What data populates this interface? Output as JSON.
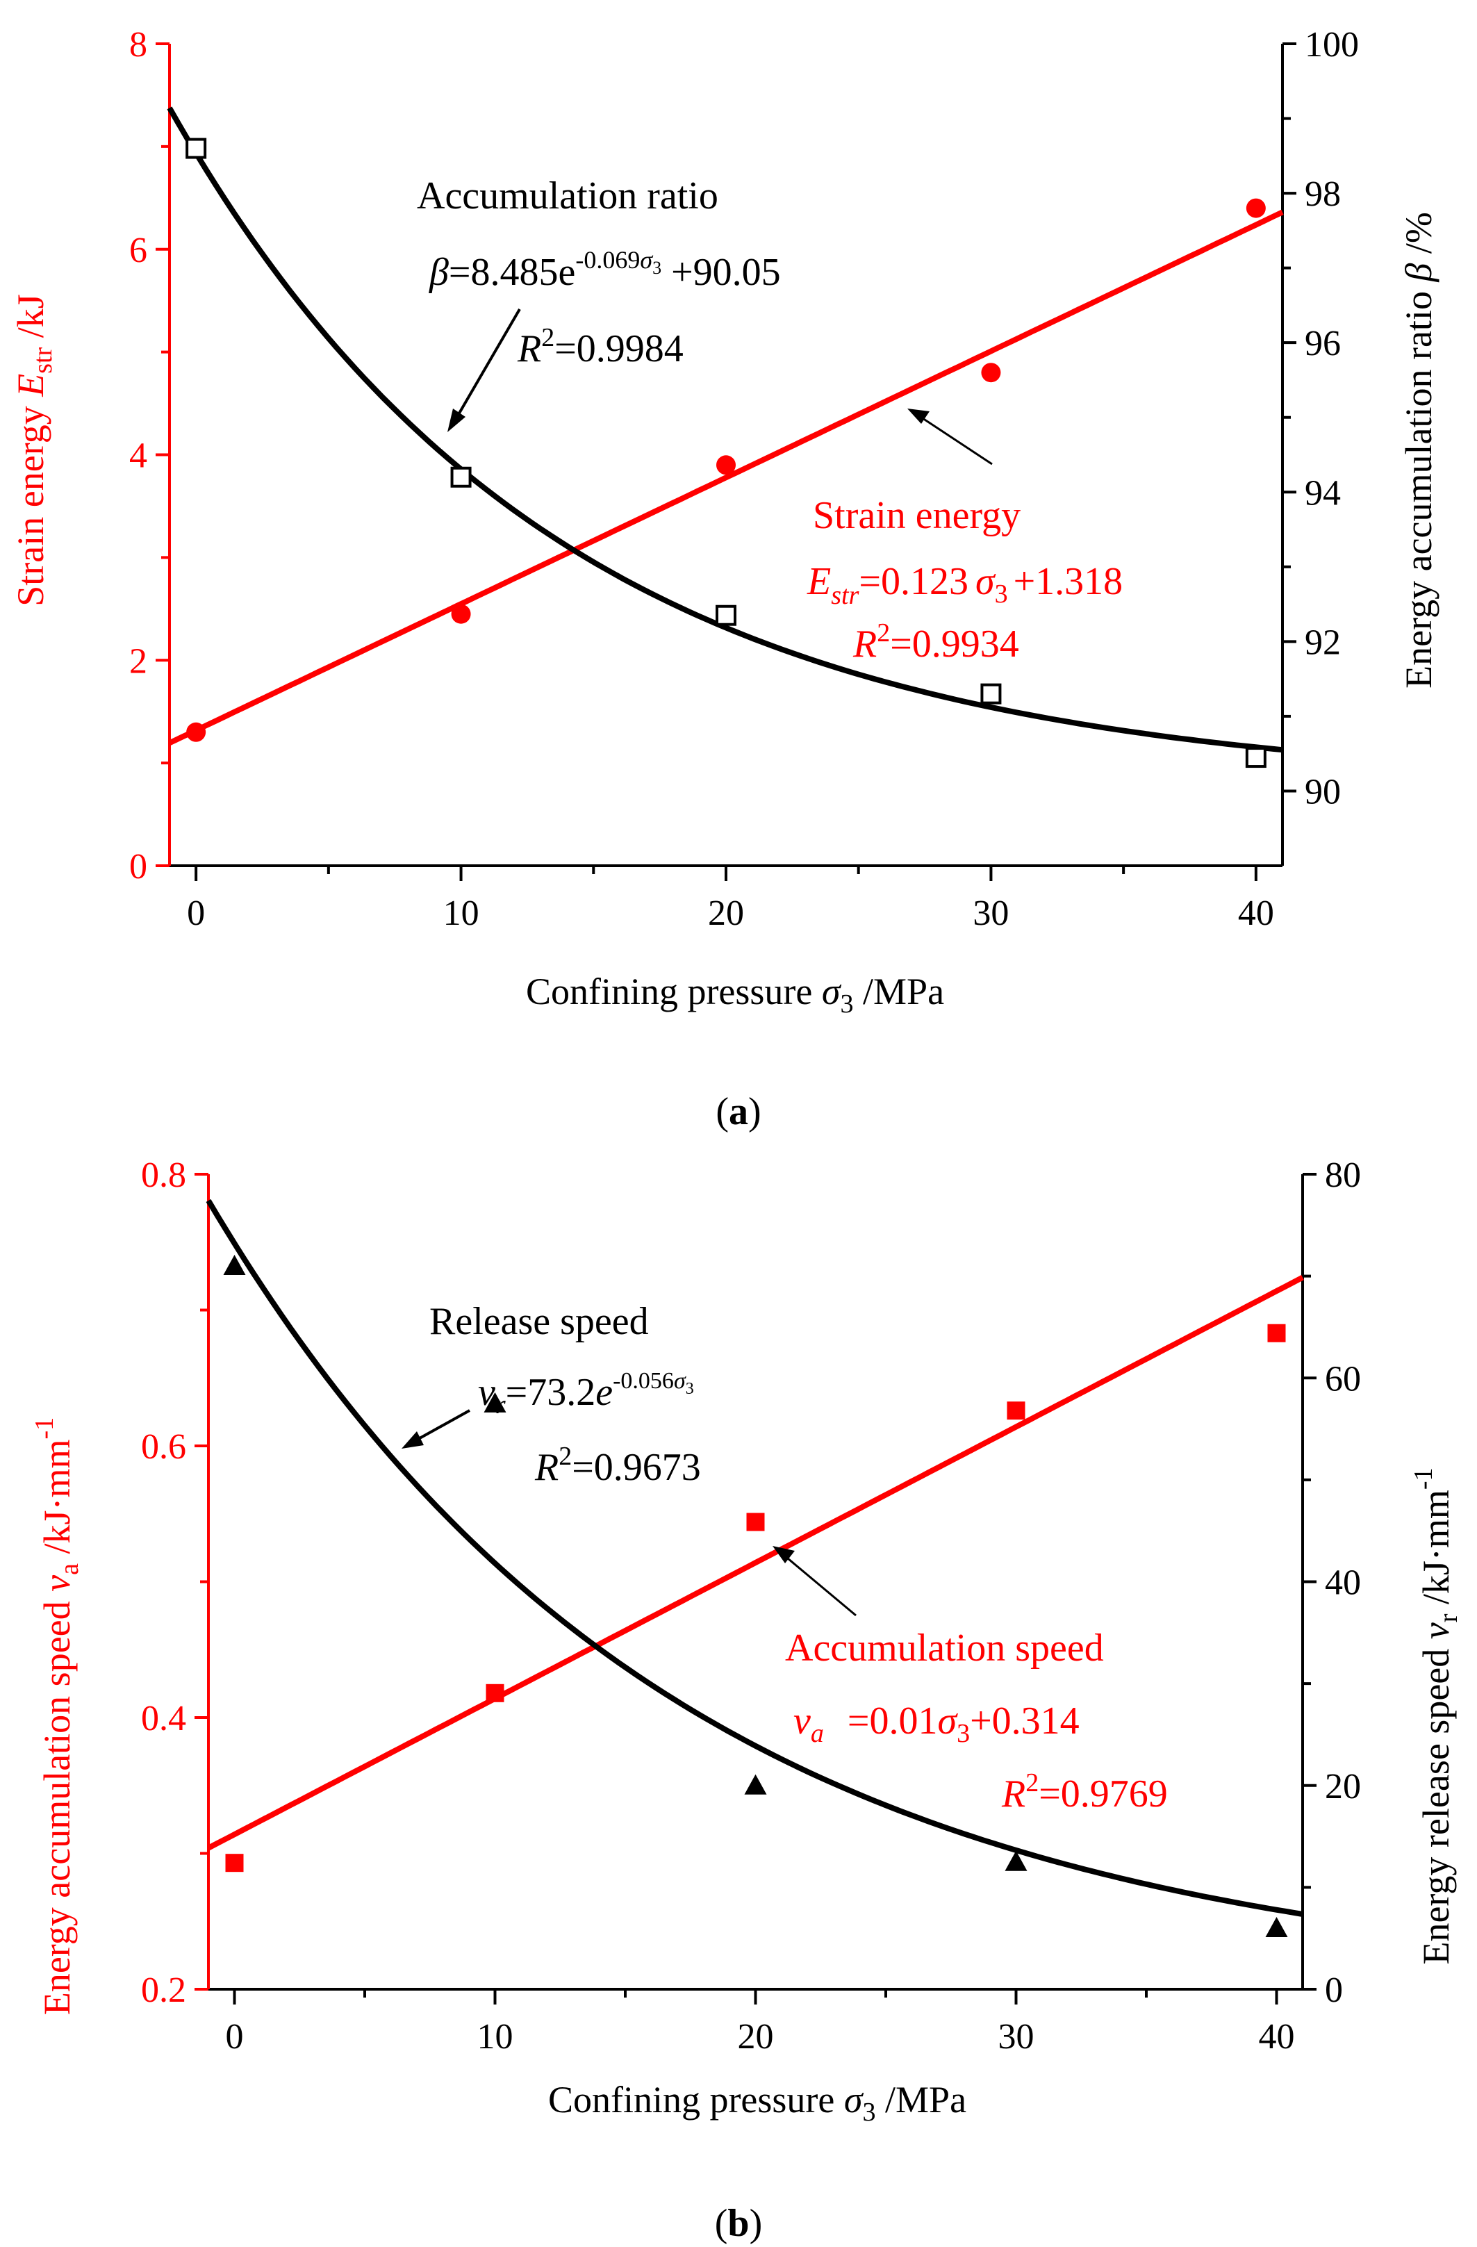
{
  "colors": {
    "red": "#ff0000",
    "black": "#000000"
  },
  "panels": {
    "a": {
      "label_prefix": "(",
      "label": "a",
      "label_suffix": ")"
    },
    "b": {
      "label_prefix": "(",
      "label": "b",
      "label_suffix": ")"
    }
  },
  "chart_data": [
    {
      "id": "a",
      "type": "scatter",
      "x": [
        0,
        10,
        20,
        30,
        40
      ],
      "xlim": [
        -1,
        41
      ],
      "xticks": [
        0,
        10,
        20,
        30,
        40
      ],
      "xlabel_main": "Confining pressure ",
      "xlabel_sym": "σ",
      "xlabel_sub": "3",
      "xlabel_unit": " /MPa",
      "ylim_left": [
        0,
        8
      ],
      "yticks_left": [
        0,
        2,
        4,
        6,
        8
      ],
      "ylabel_left_main": "Strain energy ",
      "ylabel_left_sym": "E",
      "ylabel_left_sub": "str",
      "ylabel_left_unit": " /kJ",
      "ylim_right": [
        89,
        100
      ],
      "yticks_right": [
        90,
        92,
        94,
        96,
        98,
        100
      ],
      "ylabel_right_main": "Energy accumulation ratio ",
      "ylabel_right_sym": "β",
      "ylabel_right_unit": " /%",
      "series": [
        {
          "name": "Strain energy",
          "axis": "left",
          "color": "#ff0000",
          "marker": "circle-filled",
          "values": [
            1.3,
            2.45,
            3.9,
            4.8,
            6.4
          ],
          "fit": {
            "type": "linear",
            "slope": 0.123,
            "intercept": 1.318
          },
          "annotation": {
            "title": "Strain energy",
            "eq_lhs": "E",
            "eq_lhs_sub": "str",
            "eq_rhs_pre": "=0.123",
            "eq_sym": "σ",
            "eq_sym_sub": "3",
            "eq_rhs_post": "+1.318",
            "r2_lhs": "R",
            "r2_sup": "2",
            "r2_val": "=0.9934"
          }
        },
        {
          "name": "Accumulation ratio",
          "axis": "right",
          "color": "#000000",
          "marker": "square-open",
          "values": [
            98.6,
            94.2,
            92.35,
            91.3,
            90.45
          ],
          "fit": {
            "type": "exp",
            "a": 8.485,
            "b": -0.069,
            "c": 90.05
          },
          "annotation": {
            "title": "Accumulation ratio",
            "eq_lhs": "β",
            "eq_pre": "=8.485e",
            "eq_sup": "-0.069",
            "eq_sup_sym": "σ",
            "eq_sup_sub": "3",
            "eq_post": " +90.05",
            "r2_lhs": "R",
            "r2_sup": "2",
            "r2_val": "=0.9984"
          }
        }
      ]
    },
    {
      "id": "b",
      "type": "scatter",
      "x": [
        0,
        10,
        20,
        30,
        40
      ],
      "xlim": [
        -1,
        41
      ],
      "xticks": [
        0,
        10,
        20,
        30,
        40
      ],
      "xlabel_main": "Confining pressure ",
      "xlabel_sym": "σ",
      "xlabel_sub": "3",
      "xlabel_unit": " /MPa",
      "ylim_left": [
        0.2,
        0.8
      ],
      "yticks_left": [
        "0.2",
        "0.4",
        "0.6",
        "0.8"
      ],
      "ylabel_left_main": "Energy accumulation speed ",
      "ylabel_left_sym": "v",
      "ylabel_left_sub": "a",
      "ylabel_left_unit": " /kJ·mm",
      "ylabel_left_sup": "-1",
      "ylim_right": [
        0,
        80
      ],
      "yticks_right": [
        0,
        20,
        40,
        60,
        80
      ],
      "ylabel_right_main": "Energy release speed ",
      "ylabel_right_sym": "v",
      "ylabel_right_sub": "r",
      "ylabel_right_unit": " /kJ·mm",
      "ylabel_right_sup": "-1",
      "series": [
        {
          "name": "Accumulation speed",
          "axis": "left",
          "color": "#ff0000",
          "marker": "square-filled",
          "values": [
            0.293,
            0.418,
            0.544,
            0.626,
            0.683
          ],
          "fit": {
            "type": "linear",
            "slope": 0.01,
            "intercept": 0.314
          },
          "annotation": {
            "title": "Accumulation speed",
            "eq_lhs": "v",
            "eq_lhs_sub": "a",
            "eq_rhs_pre": "=0.01",
            "eq_sym": "σ",
            "eq_sym_sub": "3",
            "eq_rhs_post": "+0.314",
            "r2_lhs": "R",
            "r2_sup": "2",
            "r2_val": "=0.9769"
          }
        },
        {
          "name": "Release speed",
          "axis": "right",
          "color": "#000000",
          "marker": "triangle-filled",
          "values": [
            71,
            57.5,
            20,
            12.5,
            6
          ],
          "fit": {
            "type": "exp",
            "a": 73.2,
            "b": -0.056,
            "c": 0
          },
          "annotation": {
            "title": "Release speed",
            "eq_lhs": "v",
            "eq_lhs_sub": "r",
            "eq_pre": "=73.2",
            "eq_e": "e",
            "eq_sup": "-0.056",
            "eq_sup_sym": "σ",
            "eq_sup_sub": "3",
            "r2_lhs": "R",
            "r2_sup": "2",
            "r2_val": "=0.9673"
          }
        }
      ]
    }
  ]
}
